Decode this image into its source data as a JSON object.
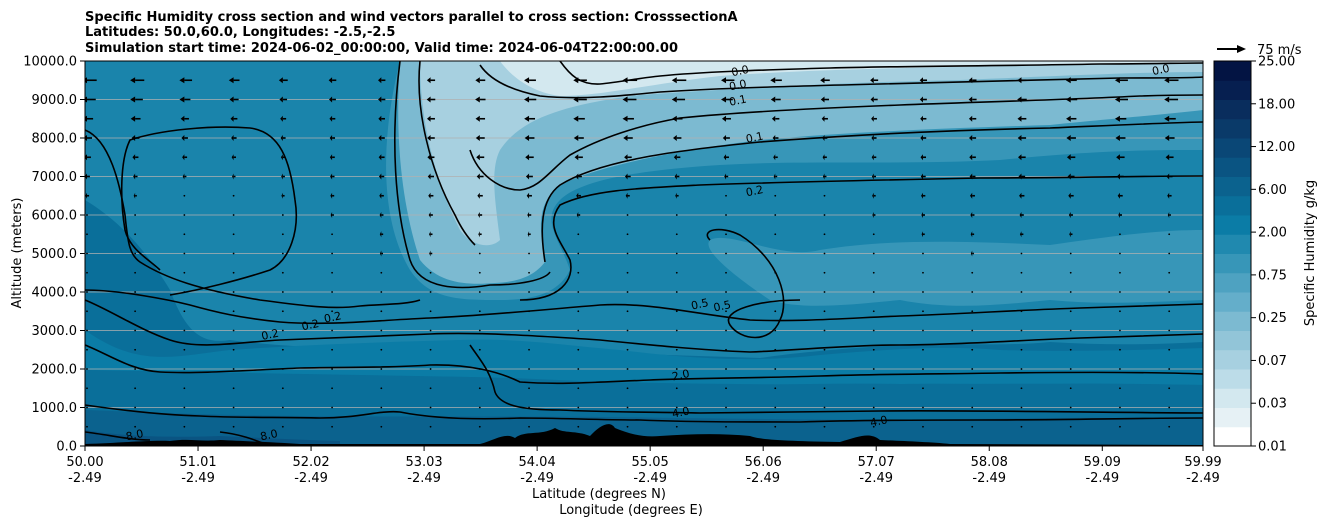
{
  "chart_data": {
    "type": "contour",
    "title_lines": [
      "Specific Humidity cross section and wind vectors parallel to cross section: CrosssectionA",
      "Latitudes: 50.0,60.0, Longitudes: -2.5,-2.5",
      "Simulation start time: 2024-06-02_00:00:00, Valid time: 2024-06-04T22:00:00.00"
    ],
    "xlabel_lat": "Latitude (degrees N)",
    "xlabel_lon": "Longitude (degrees E)",
    "ylabel": "Altitude (meters)",
    "xlim": [
      50.0,
      59.99
    ],
    "ylim": [
      0,
      10000
    ],
    "x_ticks": [
      {
        "lat": "50.00",
        "lon": "-2.49",
        "v": 50.0
      },
      {
        "lat": "51.01",
        "lon": "-2.49",
        "v": 51.01
      },
      {
        "lat": "52.02",
        "lon": "-2.49",
        "v": 52.02
      },
      {
        "lat": "53.03",
        "lon": "-2.49",
        "v": 53.03
      },
      {
        "lat": "54.04",
        "lon": "-2.49",
        "v": 54.04
      },
      {
        "lat": "55.05",
        "lon": "-2.49",
        "v": 55.05
      },
      {
        "lat": "56.06",
        "lon": "-2.49",
        "v": 56.06
      },
      {
        "lat": "57.07",
        "lon": "-2.49",
        "v": 57.07
      },
      {
        "lat": "58.08",
        "lon": "-2.49",
        "v": 58.08
      },
      {
        "lat": "59.09",
        "lon": "-2.49",
        "v": 59.09
      },
      {
        "lat": "59.99",
        "lon": "-2.49",
        "v": 59.99
      }
    ],
    "y_ticks": [
      {
        "label": "0.0",
        "v": 0
      },
      {
        "label": "1000.0",
        "v": 1000
      },
      {
        "label": "2000.0",
        "v": 2000
      },
      {
        "label": "3000.0",
        "v": 3000
      },
      {
        "label": "4000.0",
        "v": 4000
      },
      {
        "label": "5000.0",
        "v": 5000
      },
      {
        "label": "6000.0",
        "v": 6000
      },
      {
        "label": "7000.0",
        "v": 7000
      },
      {
        "label": "8000.0",
        "v": 8000
      },
      {
        "label": "9000.0",
        "v": 9000
      },
      {
        "label": "10000.0",
        "v": 10000
      }
    ],
    "colorbar": {
      "label": "Specific Humidity g/kg",
      "levels": [
        "0.01",
        "0.03",
        "0.07",
        "0.25",
        "0.75",
        "2.00",
        "6.00",
        "12.00",
        "18.00",
        "25.00"
      ],
      "colors": [
        "#ffffff",
        "#e6f1f5",
        "#d3e8ef",
        "#bcdce8",
        "#a7d0e0",
        "#92c5d8",
        "#7cbad1",
        "#64aeca",
        "#4ea2c1",
        "#3796b8",
        "#2089af",
        "#0b7ca6",
        "#0a6f9a",
        "#0b628e",
        "#0a5482",
        "#0a4776",
        "#0a3a69",
        "#092d5d",
        "#061f50",
        "#031443"
      ]
    },
    "contour_labels": [
      {
        "text": "0.0",
        "lat": 55.86,
        "alt": 9650
      },
      {
        "text": "0.0",
        "lat": 55.84,
        "alt": 9280
      },
      {
        "text": "0.1",
        "lat": 55.84,
        "alt": 8880
      },
      {
        "text": "0.1",
        "lat": 55.99,
        "alt": 7920
      },
      {
        "text": "0.2",
        "lat": 55.99,
        "alt": 6530
      },
      {
        "text": "0.0",
        "lat": 59.62,
        "alt": 9680
      },
      {
        "text": "0.2",
        "lat": 52.22,
        "alt": 3250
      },
      {
        "text": "0.2",
        "lat": 51.66,
        "alt": 2800
      },
      {
        "text": "0.2",
        "lat": 52.02,
        "alt": 3050
      },
      {
        "text": "0.5",
        "lat": 55.5,
        "alt": 3590
      },
      {
        "text": "0.5",
        "lat": 55.7,
        "alt": 3540
      },
      {
        "text": "2.0",
        "lat": 55.33,
        "alt": 1750
      },
      {
        "text": "4.0",
        "lat": 55.33,
        "alt": 780
      },
      {
        "text": "4.0",
        "lat": 57.1,
        "alt": 550
      },
      {
        "text": "8.0",
        "lat": 50.45,
        "alt": 190
      },
      {
        "text": "8.0",
        "lat": 51.65,
        "alt": 190
      }
    ],
    "wind_key": {
      "label": "75 m/s",
      "speed": 75
    },
    "wind_rows_alt": [
      9500,
      9000,
      8500,
      8000,
      7500,
      7000,
      6500,
      6000,
      5500,
      5000,
      4500,
      4000,
      3500,
      3000,
      2500,
      2000,
      1500,
      1000,
      500
    ],
    "wind_cols_lat": [
      50.0,
      50.43,
      50.87,
      51.31,
      51.75,
      52.19,
      52.63,
      53.07,
      53.51,
      53.95,
      54.39,
      54.83,
      55.27,
      55.71,
      56.15,
      56.59,
      57.03,
      57.47,
      57.91,
      58.35,
      58.79,
      59.23,
      59.67
    ],
    "wind_speed_profile_ms": [
      {
        "alt": 9500,
        "max_ms": 38
      },
      {
        "alt": 9000,
        "max_ms": 36
      },
      {
        "alt": 8500,
        "max_ms": 30
      },
      {
        "alt": 8000,
        "max_ms": 26
      },
      {
        "alt": 7500,
        "max_ms": 22
      },
      {
        "alt": 7000,
        "max_ms": 18
      },
      {
        "alt": 6500,
        "max_ms": 14
      },
      {
        "alt": 6000,
        "max_ms": 11
      },
      {
        "alt": 5500,
        "max_ms": 9
      },
      {
        "alt": 5000,
        "max_ms": 8
      },
      {
        "alt": 4500,
        "max_ms": 7
      },
      {
        "alt": 4000,
        "max_ms": 6
      },
      {
        "alt": 3500,
        "max_ms": 5
      },
      {
        "alt": 3000,
        "max_ms": 4
      },
      {
        "alt": 2500,
        "max_ms": 3
      },
      {
        "alt": 2000,
        "max_ms": 2
      },
      {
        "alt": 1500,
        "max_ms": 2
      },
      {
        "alt": 1000,
        "max_ms": 1
      },
      {
        "alt": 500,
        "max_ms": 1
      }
    ],
    "grid": true
  }
}
